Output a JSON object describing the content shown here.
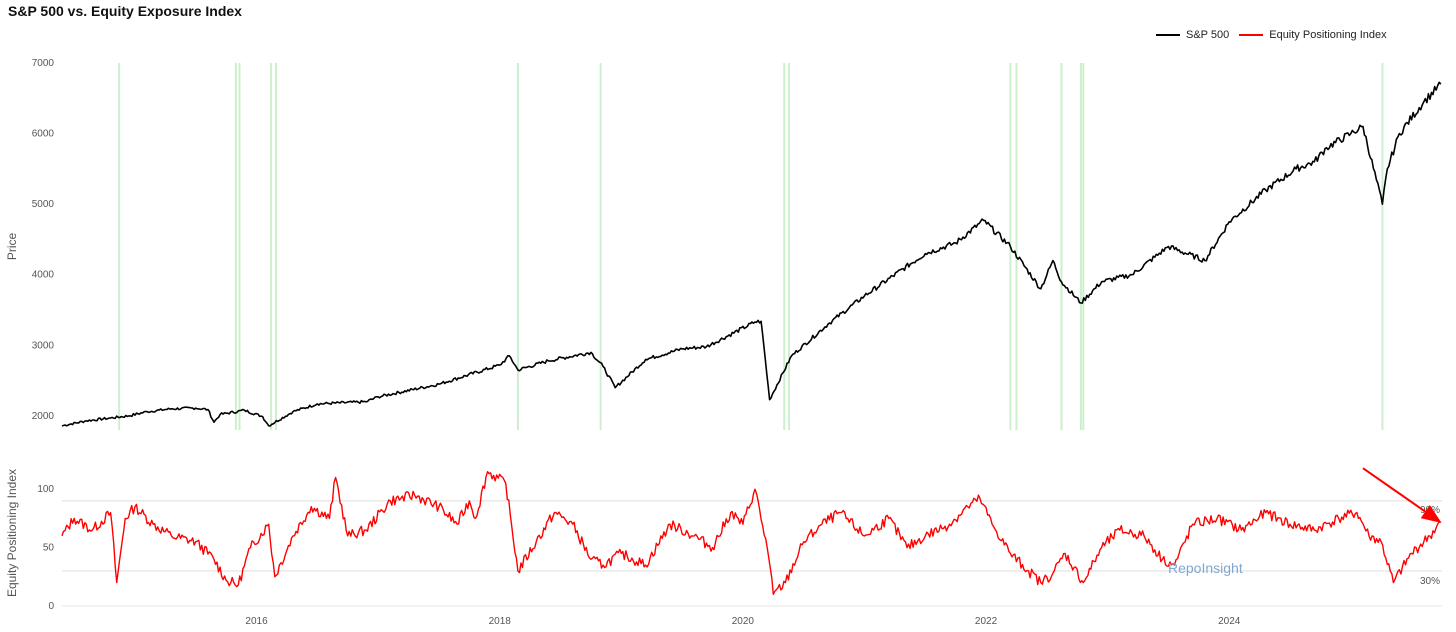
{
  "title": "S&P 500 vs. Equity Exposure Index",
  "watermark": "RepoInsight",
  "colors": {
    "sp500": "#000000",
    "epi": "#ff0000",
    "highlight": "#ccf0cc",
    "grid": "#dddddd"
  },
  "chart_data": [
    {
      "type": "line",
      "title": "S&P 500 vs. Equity Exposure Index",
      "ylabel": "Price",
      "xlabel": "",
      "ylim": [
        1800,
        7000
      ],
      "xlim": [
        2014.4,
        2025.75
      ],
      "yticks": [
        "7000",
        "6000",
        "5000",
        "4000",
        "3000",
        "2000"
      ],
      "legend": {
        "placement": "top-right",
        "entries": [
          "S&P 500",
          "Equity Positioning Index"
        ]
      },
      "highlight_bands_x": [
        2014.87,
        2015.83,
        2015.86,
        2016.12,
        2016.16,
        2018.15,
        2018.83,
        2020.34,
        2020.38,
        2022.2,
        2022.25,
        2022.62,
        2022.78,
        2022.8,
        2025.26
      ],
      "series": [
        {
          "name": "S&P 500",
          "x": [
            2014.4,
            2014.6,
            2014.8,
            2014.95,
            2015.1,
            2015.3,
            2015.5,
            2015.6,
            2015.65,
            2015.7,
            2015.9,
            2016.05,
            2016.1,
            2016.3,
            2016.5,
            2016.9,
            2017.0,
            2017.5,
            2018.0,
            2018.08,
            2018.15,
            2018.4,
            2018.75,
            2018.85,
            2018.95,
            2019.2,
            2019.5,
            2019.7,
            2020.1,
            2020.15,
            2020.22,
            2020.4,
            2020.7,
            2021.0,
            2021.5,
            2021.75,
            2021.98,
            2022.2,
            2022.45,
            2022.55,
            2022.62,
            2022.78,
            2022.95,
            2023.2,
            2023.5,
            2023.8,
            2024.0,
            2024.3,
            2024.55,
            2024.7,
            2024.8,
            2025.0,
            2025.1,
            2025.26,
            2025.3,
            2025.4,
            2025.6,
            2025.74
          ],
          "values": [
            1860,
            1930,
            1970,
            2000,
            2060,
            2100,
            2110,
            2090,
            1910,
            2020,
            2080,
            1990,
            1860,
            2060,
            2170,
            2200,
            2270,
            2450,
            2720,
            2850,
            2650,
            2780,
            2900,
            2700,
            2400,
            2800,
            2950,
            2980,
            3330,
            3340,
            2230,
            2850,
            3300,
            3700,
            4300,
            4450,
            4770,
            4400,
            3800,
            4200,
            3900,
            3600,
            3900,
            4000,
            4400,
            4200,
            4750,
            5200,
            5500,
            5600,
            5800,
            6000,
            6100,
            5000,
            5500,
            6000,
            6450,
            6700
          ]
        }
      ]
    },
    {
      "type": "line",
      "ylabel": "Equity Positioning Index",
      "xlabel": "",
      "ylim": [
        0,
        125
      ],
      "xlim": [
        2014.4,
        2025.75
      ],
      "xticks": [
        "2016",
        "2018",
        "2020",
        "2022",
        "2024"
      ],
      "yticks": [
        "100",
        "50",
        "0"
      ],
      "reference_lines": [
        {
          "value": 90,
          "label": "90%"
        },
        {
          "value": 30,
          "label": "30%"
        }
      ],
      "annotation": {
        "type": "arrow",
        "from_x": 2025.1,
        "from_y": 118,
        "to_x": 2025.72,
        "to_y": 73
      },
      "series": [
        {
          "name": "Equity Positioning Index",
          "x": [
            2014.4,
            2014.5,
            2014.65,
            2014.8,
            2014.85,
            2014.92,
            2015.0,
            2015.15,
            2015.3,
            2015.5,
            2015.65,
            2015.75,
            2015.85,
            2015.95,
            2016.1,
            2016.15,
            2016.3,
            2016.45,
            2016.6,
            2016.65,
            2016.75,
            2016.9,
            2017.1,
            2017.3,
            2017.5,
            2017.65,
            2017.75,
            2017.8,
            2017.9,
            2018.05,
            2018.15,
            2018.3,
            2018.45,
            2018.6,
            2018.75,
            2018.85,
            2019.0,
            2019.2,
            2019.4,
            2019.6,
            2019.75,
            2019.9,
            2020.0,
            2020.1,
            2020.2,
            2020.25,
            2020.35,
            2020.5,
            2020.65,
            2020.8,
            2021.0,
            2021.2,
            2021.35,
            2021.5,
            2021.7,
            2021.85,
            2021.95,
            2022.05,
            2022.2,
            2022.35,
            2022.45,
            2022.55,
            2022.65,
            2022.8,
            2022.95,
            2023.1,
            2023.3,
            2023.45,
            2023.55,
            2023.7,
            2023.9,
            2024.1,
            2024.3,
            2024.5,
            2024.7,
            2024.9,
            2025.05,
            2025.15,
            2025.25,
            2025.35,
            2025.5,
            2025.65,
            2025.74
          ],
          "values": [
            60,
            75,
            65,
            80,
            20,
            75,
            85,
            70,
            60,
            55,
            40,
            22,
            18,
            50,
            70,
            25,
            60,
            85,
            75,
            110,
            60,
            65,
            90,
            95,
            85,
            70,
            90,
            75,
            115,
            105,
            30,
            55,
            80,
            70,
            40,
            35,
            45,
            35,
            70,
            60,
            50,
            80,
            70,
            100,
            50,
            10,
            20,
            55,
            70,
            80,
            60,
            75,
            50,
            60,
            70,
            85,
            92,
            70,
            45,
            30,
            20,
            28,
            45,
            20,
            50,
            65,
            60,
            40,
            35,
            70,
            75,
            65,
            80,
            70,
            65,
            75,
            80,
            60,
            55,
            20,
            45,
            60,
            72
          ]
        }
      ]
    }
  ]
}
